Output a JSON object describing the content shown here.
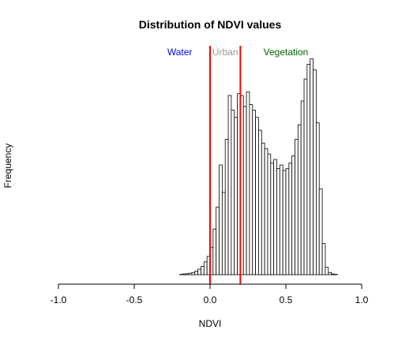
{
  "chart_data": {
    "type": "bar",
    "title": "Distribution of NDVI values",
    "xlabel": "NDVI",
    "ylabel": "Frequency",
    "xlim": [
      -1.0,
      1.0
    ],
    "ylim": [
      0,
      1
    ],
    "y_tick_labels_shown": false,
    "x_ticks": [
      {
        "value": -1.0,
        "label": "-1.0"
      },
      {
        "value": -0.5,
        "label": "-0.5"
      },
      {
        "value": 0.0,
        "label": "0.0"
      },
      {
        "value": 0.5,
        "label": "0.5"
      },
      {
        "value": 1.0,
        "label": "1.0"
      }
    ],
    "bin_width": 0.02,
    "bins_start": -1.0,
    "counts": [
      0,
      0,
      0,
      0,
      0,
      0,
      0,
      0,
      0,
      0,
      0,
      0,
      0,
      0,
      0,
      0,
      0,
      0,
      0,
      0,
      0,
      0,
      0,
      0,
      0,
      0,
      0,
      0,
      0,
      0,
      0,
      0,
      0,
      0,
      0,
      0,
      0,
      0,
      0,
      0,
      0.002,
      0.004,
      0.005,
      0.008,
      0.012,
      0.02,
      0.03,
      0.045,
      0.07,
      0.1,
      0.15,
      0.25,
      0.37,
      0.6,
      0.45,
      0.74,
      0.98,
      0.9,
      0.86,
      0.99,
      0.98,
      0.92,
      1.0,
      0.93,
      0.9,
      0.86,
      0.79,
      0.72,
      0.69,
      0.66,
      0.61,
      0.63,
      0.58,
      0.6,
      0.57,
      0.58,
      0.61,
      0.65,
      0.74,
      0.82,
      0.95,
      1.07,
      1.15,
      1.18,
      1.12,
      0.83,
      0.47,
      0.17,
      0.04,
      0.012,
      0.004,
      0.002,
      0,
      0,
      0,
      0,
      0,
      0,
      0,
      0
    ],
    "counts_unit": "relative frequency (no y-axis scale printed)",
    "vlines": [
      {
        "x": 0.0,
        "color": "#ff0000"
      },
      {
        "x": 0.2,
        "color": "#ff0000"
      }
    ],
    "annotations": [
      {
        "text": "Water",
        "x": -0.2,
        "color": "#0000ff"
      },
      {
        "text": "Urban",
        "x": 0.1,
        "color": "#999999"
      },
      {
        "text": "Vegetation",
        "x": 0.5,
        "color": "#006400"
      }
    ],
    "grid": false,
    "legend": "none"
  }
}
